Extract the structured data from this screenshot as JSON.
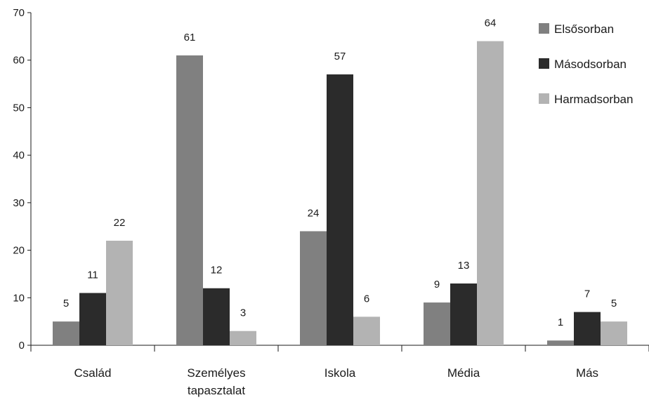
{
  "chart_data": {
    "type": "bar",
    "title": "",
    "xlabel": "",
    "ylabel": "",
    "ylim": [
      0,
      70
    ],
    "yticks": [
      0,
      10,
      20,
      30,
      40,
      50,
      60,
      70
    ],
    "categories": [
      [
        "Család"
      ],
      [
        "Személyes",
        "tapasztalat"
      ],
      [
        "Iskola"
      ],
      [
        "Média"
      ],
      [
        "Más"
      ]
    ],
    "series": [
      {
        "name": "Elsősorban",
        "color": "#808080",
        "values": [
          5,
          61,
          24,
          9,
          1
        ]
      },
      {
        "name": "Másodsorban",
        "color": "#2b2b2b",
        "values": [
          11,
          12,
          57,
          13,
          7
        ]
      },
      {
        "name": "Harmadsorban",
        "color": "#b3b3b3",
        "values": [
          22,
          3,
          6,
          64,
          5
        ]
      }
    ],
    "grid": false,
    "legend_position": "top-right"
  }
}
